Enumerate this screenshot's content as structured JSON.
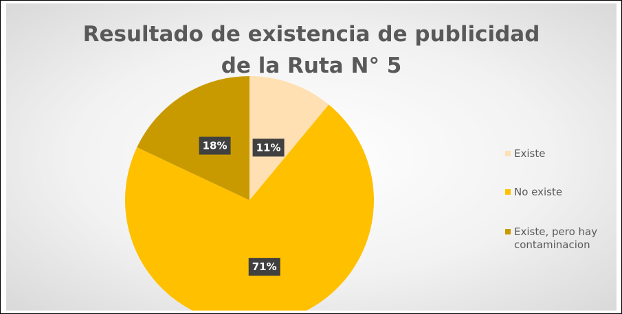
{
  "chart_data": {
    "type": "pie",
    "title_lines": [
      "Resultado de existencia de publicidad",
      "de la Ruta N° 5"
    ],
    "categories": [
      "Existe",
      "No existe",
      "Existe, pero hay contaminacion"
    ],
    "values": [
      11,
      71,
      18
    ],
    "value_labels": [
      "11%",
      "71%",
      "18%"
    ],
    "colors": [
      "#ffe0b3",
      "#ffc000",
      "#c99a00"
    ],
    "legend_position": "right",
    "start_angle_deg": 0,
    "direction": "clockwise"
  },
  "legend": {
    "items": [
      {
        "label": "Existe",
        "color": "#ffe0b3"
      },
      {
        "label": "No existe",
        "color": "#ffc000"
      },
      {
        "label": "Existe, pero hay contaminacion",
        "color": "#c99a00"
      }
    ]
  }
}
